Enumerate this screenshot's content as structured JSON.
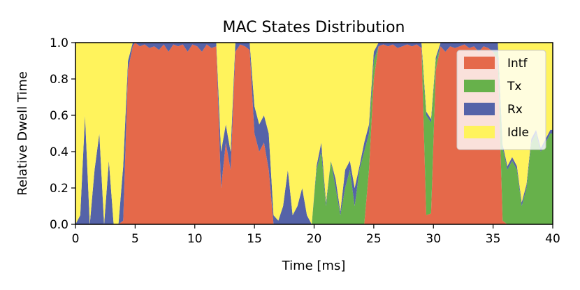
{
  "chart_data": {
    "type": "area",
    "stacked": true,
    "title": "MAC States Distribution",
    "xlabel": "Time [ms]",
    "ylabel": "Relative Dwell Time",
    "xlim": [
      0,
      40
    ],
    "ylim": [
      0,
      1
    ],
    "xticks": [
      0,
      5,
      10,
      15,
      20,
      25,
      30,
      35,
      40
    ],
    "xtick_labels": [
      "0",
      "5",
      "10",
      "15",
      "20",
      "25",
      "30",
      "35",
      "40"
    ],
    "yticks": [
      0,
      0.2,
      0.4,
      0.6,
      0.8,
      1.0
    ],
    "ytick_labels": [
      "0.0",
      "0.2",
      "0.4",
      "0.6",
      "0.8",
      "1.0"
    ],
    "grid": false,
    "legend_position": "right",
    "x": [
      0,
      0.4,
      0.8,
      1.2,
      1.6,
      2.0,
      2.4,
      2.8,
      3.2,
      3.6,
      4.0,
      4.4,
      4.8,
      5.0,
      5.4,
      5.8,
      6.2,
      6.6,
      7.0,
      7.4,
      7.8,
      8.2,
      8.6,
      9.0,
      9.4,
      9.8,
      10.2,
      10.6,
      11.0,
      11.4,
      11.8,
      12.2,
      12.6,
      13.0,
      13.4,
      13.8,
      14.2,
      14.6,
      15.0,
      15.4,
      15.8,
      16.2,
      16.6,
      17.0,
      17.4,
      17.8,
      18.2,
      18.6,
      19.0,
      19.4,
      19.8,
      20.2,
      20.6,
      21.0,
      21.4,
      21.8,
      22.2,
      22.6,
      23.0,
      23.4,
      23.8,
      24.2,
      24.6,
      25.0,
      25.4,
      25.8,
      26.2,
      26.6,
      27.0,
      27.4,
      27.8,
      28.2,
      28.6,
      29.0,
      29.4,
      29.8,
      30.2,
      30.6,
      31.0,
      31.4,
      31.8,
      32.2,
      32.6,
      33.0,
      33.4,
      33.8,
      34.2,
      34.6,
      35.0,
      35.4,
      35.8,
      36.2,
      36.6,
      37.0,
      37.4,
      37.8,
      38.2,
      38.6,
      39.0,
      39.4,
      39.8,
      40.0
    ],
    "series": [
      {
        "name": "Intf",
        "color": "#e5694a",
        "values": [
          0,
          0,
          0,
          0,
          0,
          0,
          0,
          0,
          0,
          0,
          0.02,
          0.85,
          0.98,
          1.0,
          0.98,
          0.99,
          0.97,
          0.98,
          0.96,
          0.99,
          0.95,
          0.99,
          0.98,
          0.99,
          0.95,
          0.99,
          0.98,
          0.95,
          0.99,
          0.97,
          0.98,
          0.2,
          0.45,
          0.3,
          0.95,
          0.99,
          0.98,
          0.96,
          0.5,
          0.4,
          0.45,
          0.3,
          0,
          0,
          0,
          0,
          0,
          0,
          0,
          0,
          0,
          0,
          0,
          0,
          0,
          0,
          0,
          0,
          0,
          0,
          0,
          0,
          0.3,
          0.8,
          0.98,
          0.99,
          0.98,
          0.99,
          0.97,
          0.98,
          0.99,
          0.98,
          0.99,
          0.97,
          0.05,
          0.06,
          0.85,
          0.98,
          0.95,
          0.98,
          0.97,
          0.98,
          0.99,
          0.97,
          0.98,
          0.95,
          0.98,
          0.97,
          0.95,
          0.9,
          0.02,
          0,
          0,
          0,
          0,
          0,
          0,
          0,
          0,
          0,
          0,
          0
        ]
      },
      {
        "name": "Tx",
        "color": "#67b14b",
        "values": [
          0,
          0,
          0,
          0,
          0,
          0,
          0,
          0,
          0,
          0,
          0,
          0,
          0,
          0,
          0,
          0,
          0,
          0,
          0,
          0,
          0,
          0,
          0,
          0,
          0,
          0,
          0,
          0,
          0,
          0,
          0,
          0,
          0,
          0,
          0,
          0,
          0,
          0,
          0,
          0,
          0,
          0,
          0,
          0,
          0,
          0,
          0,
          0,
          0,
          0,
          0,
          0.3,
          0.4,
          0.1,
          0.35,
          0.2,
          0.05,
          0.2,
          0.3,
          0.1,
          0.3,
          0.4,
          0.2,
          0.1,
          0,
          0,
          0,
          0,
          0,
          0,
          0,
          0,
          0,
          0,
          0.55,
          0.5,
          0.05,
          0,
          0,
          0,
          0,
          0,
          0,
          0,
          0,
          0,
          0,
          0,
          0,
          0.05,
          0.4,
          0.3,
          0.35,
          0.3,
          0.1,
          0.2,
          0.45,
          0.5,
          0.4,
          0.45,
          0.5,
          0.5
        ]
      },
      {
        "name": "Rx",
        "color": "#5563a8",
        "values": [
          0,
          0.05,
          0.6,
          0,
          0.3,
          0.5,
          0,
          0.35,
          0,
          0,
          0.3,
          0.05,
          0.02,
          0,
          0.02,
          0.01,
          0.03,
          0.02,
          0.04,
          0.01,
          0.05,
          0.01,
          0.02,
          0.01,
          0.05,
          0.01,
          0.02,
          0.05,
          0.01,
          0.03,
          0.02,
          0.2,
          0.1,
          0.1,
          0.05,
          0.01,
          0.02,
          0.04,
          0.15,
          0.15,
          0.15,
          0.2,
          0.05,
          0.02,
          0.1,
          0.3,
          0.05,
          0.1,
          0.2,
          0.05,
          0,
          0.02,
          0.05,
          0.02,
          0,
          0.05,
          0.02,
          0.1,
          0.05,
          0.1,
          0.02,
          0.05,
          0.05,
          0.05,
          0.02,
          0.01,
          0.02,
          0.01,
          0.03,
          0.02,
          0.01,
          0.02,
          0.01,
          0.03,
          0.02,
          0.02,
          0.02,
          0.02,
          0.05,
          0.02,
          0.03,
          0.02,
          0.01,
          0.03,
          0.02,
          0.05,
          0.02,
          0.03,
          0.05,
          0.05,
          0.02,
          0.02,
          0.02,
          0.02,
          0.02,
          0.02,
          0.02,
          0.02,
          0.02,
          0.02,
          0.02,
          0.02
        ]
      },
      {
        "name": "Idle",
        "color": "#fff35c",
        "values": [
          1.0,
          0.95,
          0.4,
          1.0,
          0.7,
          0.5,
          1.0,
          0.65,
          1.0,
          1.0,
          0.68,
          0.1,
          0,
          0,
          0,
          0,
          0,
          0,
          0,
          0,
          0,
          0,
          0,
          0,
          0,
          0,
          0,
          0,
          0,
          0,
          0,
          0.6,
          0.45,
          0.6,
          0,
          0,
          0,
          0,
          0.35,
          0.45,
          0.4,
          0.5,
          0.95,
          0.98,
          0.9,
          0.7,
          0.95,
          0.9,
          0.8,
          0.95,
          1.0,
          0.68,
          0.55,
          0.88,
          0.65,
          0.75,
          0.93,
          0.7,
          0.65,
          0.8,
          0.68,
          0.55,
          0.45,
          0.05,
          0,
          0,
          0,
          0,
          0,
          0,
          0,
          0,
          0,
          0,
          0.38,
          0.42,
          0.08,
          0,
          0,
          0,
          0,
          0,
          0,
          0,
          0,
          0,
          0,
          0,
          0,
          0,
          0.56,
          0.68,
          0.63,
          0.68,
          0.88,
          0.78,
          0.53,
          0.48,
          0.58,
          0.53,
          0.48,
          0.48
        ]
      }
    ],
    "legend_order": [
      "Intf",
      "Tx",
      "Rx",
      "Idle"
    ]
  }
}
